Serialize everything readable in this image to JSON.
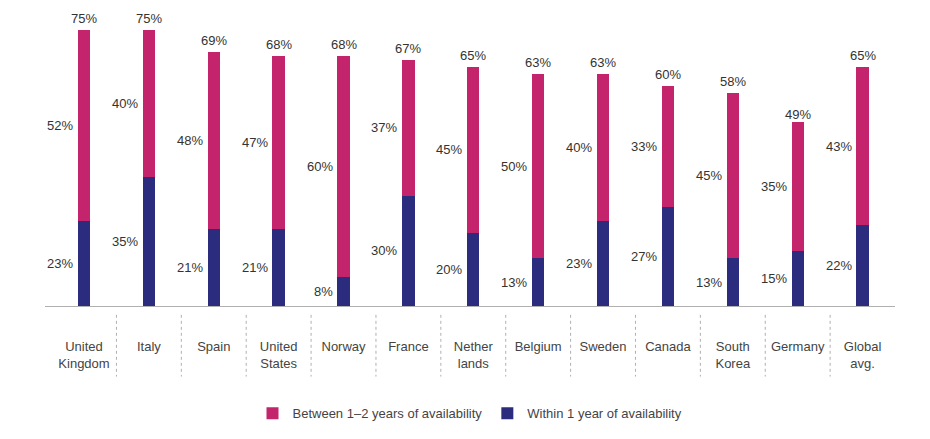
{
  "chart_data": {
    "type": "bar",
    "stacked": true,
    "data_labels": true,
    "tick_labels": "x",
    "grid": false,
    "legend": "bottom",
    "categories": [
      "United\nKingdom",
      "Italy",
      "Spain",
      "United\nStates",
      "Norway",
      "France",
      "Nether\nlands",
      "Belgium",
      "Sweden",
      "Canada",
      "South\nKorea",
      "Germany",
      "Global\navg."
    ],
    "ylim": [
      0,
      80
    ],
    "yticks": [],
    "series": [
      {
        "name": "Within 1 year of availability",
        "color": "#2c2c7e",
        "values": [
          23,
          35,
          21,
          21,
          8,
          30,
          20,
          13,
          23,
          27,
          13,
          15,
          22
        ],
        "value_labels": [
          "23%",
          "35%",
          "21%",
          "21%",
          "8%",
          "30%",
          "20%",
          "13%",
          "23%",
          "27%",
          "13%",
          "15%",
          "22%"
        ]
      },
      {
        "name": "Between 1–2 years of availability",
        "color": "#c4246c",
        "values": [
          52,
          40,
          48,
          47,
          60,
          37,
          45,
          50,
          40,
          33,
          45,
          35,
          43
        ],
        "value_labels": [
          "52%",
          "40%",
          "48%",
          "47%",
          "60%",
          "37%",
          "45%",
          "50%",
          "40%",
          "33%",
          "45%",
          "35%",
          "43%"
        ]
      }
    ],
    "totals": {
      "values": [
        75,
        75,
        69,
        68,
        68,
        67,
        65,
        63,
        63,
        60,
        58,
        49,
        65
      ],
      "value_labels": [
        "75%",
        "75%",
        "69%",
        "68%",
        "68%",
        "67%",
        "65%",
        "63%",
        "63%",
        "60%",
        "58%",
        "49%",
        "65%"
      ]
    }
  }
}
